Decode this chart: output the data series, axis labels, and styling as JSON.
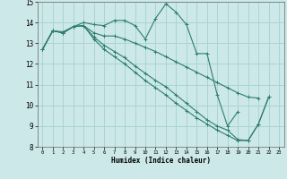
{
  "xlabel": "Humidex (Indice chaleur)",
  "bg_color": "#cce8e8",
  "grid_color": "#aad4d4",
  "line_color": "#2e7d6e",
  "xlim": [
    -0.5,
    23.5
  ],
  "ylim": [
    8,
    15
  ],
  "xticks": [
    0,
    1,
    2,
    3,
    4,
    5,
    6,
    7,
    8,
    9,
    10,
    11,
    12,
    13,
    14,
    15,
    16,
    17,
    18,
    19,
    20,
    21,
    22,
    23
  ],
  "yticks": [
    8,
    9,
    10,
    11,
    12,
    13,
    14,
    15
  ],
  "series": [
    {
      "x": [
        0,
        1,
        2,
        3,
        4,
        5,
        6,
        7,
        8,
        9,
        10,
        11,
        12,
        13,
        14,
        15,
        16,
        17,
        18,
        19
      ],
      "y": [
        12.7,
        13.6,
        13.55,
        13.8,
        14.0,
        13.9,
        13.85,
        14.1,
        14.1,
        13.85,
        13.2,
        14.2,
        14.9,
        14.5,
        13.9,
        12.5,
        12.5,
        10.5,
        9.0,
        9.7
      ]
    },
    {
      "x": [
        0,
        1,
        2,
        3,
        4,
        5,
        6,
        7,
        8,
        9,
        10,
        11,
        12,
        13,
        14,
        15,
        16,
        17,
        18,
        19,
        20,
        21
      ],
      "y": [
        12.7,
        13.6,
        13.5,
        13.8,
        13.85,
        13.5,
        13.35,
        13.35,
        13.2,
        13.0,
        12.8,
        12.6,
        12.35,
        12.1,
        11.85,
        11.6,
        11.35,
        11.1,
        10.85,
        10.6,
        10.4,
        10.35
      ]
    },
    {
      "x": [
        0,
        1,
        2,
        3,
        4,
        5,
        6,
        7,
        8,
        9,
        10,
        11,
        12,
        13,
        14,
        15,
        16,
        17,
        18,
        19,
        20,
        21,
        22
      ],
      "y": [
        12.7,
        13.6,
        13.5,
        13.8,
        13.85,
        13.3,
        12.9,
        12.6,
        12.3,
        11.9,
        11.55,
        11.2,
        10.9,
        10.5,
        10.1,
        9.7,
        9.3,
        9.0,
        8.8,
        8.35,
        8.3,
        9.1,
        10.4
      ]
    },
    {
      "x": [
        0,
        1,
        2,
        3,
        4,
        5,
        6,
        7,
        8,
        9,
        10,
        11,
        12,
        13,
        14,
        15,
        16,
        17,
        18,
        19,
        20,
        21,
        22
      ],
      "y": [
        12.7,
        13.6,
        13.5,
        13.8,
        13.85,
        13.2,
        12.7,
        12.35,
        12.0,
        11.6,
        11.2,
        10.85,
        10.5,
        10.1,
        9.75,
        9.4,
        9.1,
        8.8,
        8.55,
        8.3,
        8.3,
        9.1,
        10.4
      ]
    }
  ]
}
